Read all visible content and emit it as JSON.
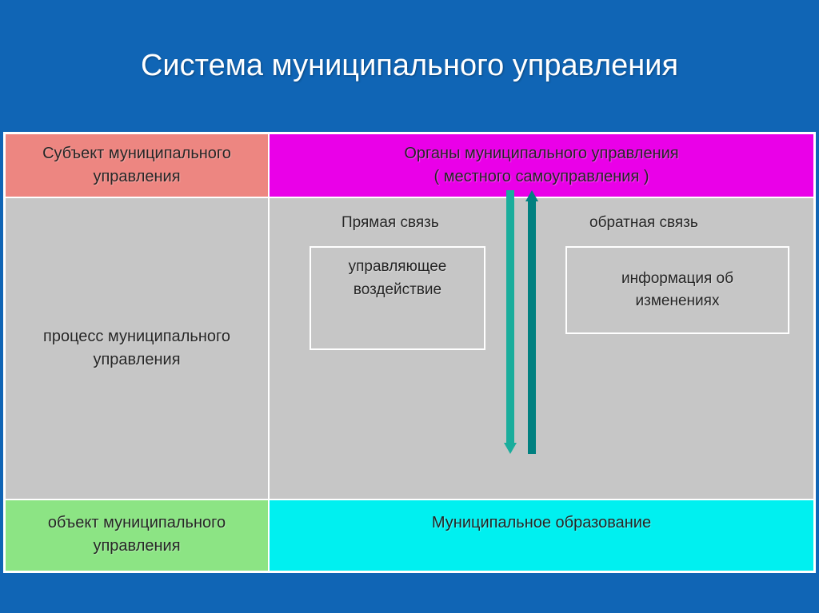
{
  "slide": {
    "title": "Система муниципального управления",
    "background_color": "#1065b5",
    "title_color": "#ffffff",
    "title_fontsize": 38
  },
  "table": {
    "border_color": "#ffffff",
    "columns": [
      330,
      686
    ],
    "rows": [
      80,
      320,
      90
    ],
    "cells": {
      "r1c1": {
        "text": "Субъект  муниципального управления",
        "bg": "#ed8681"
      },
      "r1c2": {
        "line1": "Органы  муниципального  управления",
        "line2": "( местного     самоуправления )",
        "bg": "#ea00e8"
      },
      "r2c1": {
        "text": "процесс    муниципального управления",
        "bg": "#c6c6c6"
      },
      "r2c2": {
        "bg": "#c6c6c6",
        "label_direct": "Прямая  связь",
        "label_feedback": "обратная  связь",
        "box_left_line1": "управляющее",
        "box_left_line2": "воздействие",
        "box_right_line1": "информация  об",
        "box_right_line2": "изменениях",
        "arrow_down_color": "#1aad9c",
        "arrow_up_color": "#008080",
        "box_border_color": "#ffffff"
      },
      "r3c1": {
        "text": "объект  муниципального управления",
        "bg": "#8ce484"
      },
      "r3c2": {
        "text": "Муниципальное    образование",
        "bg": "#00f0f0"
      }
    },
    "text_color": "#262626",
    "cell_fontsize": 20
  }
}
